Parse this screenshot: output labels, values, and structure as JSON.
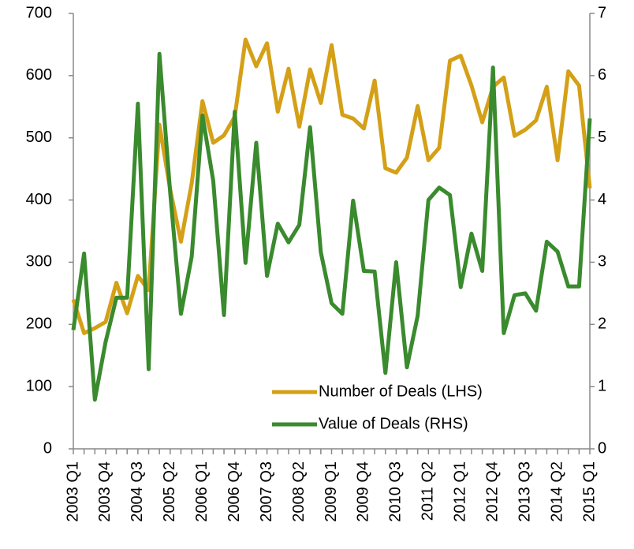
{
  "chart_data": {
    "type": "line",
    "categories": [
      "2003 Q1",
      null,
      null,
      "2003 Q4",
      null,
      null,
      "2004 Q3",
      null,
      null,
      "2005 Q2",
      null,
      null,
      "2006 Q1",
      null,
      null,
      "2006 Q4",
      null,
      null,
      "2007 Q3",
      null,
      null,
      "2008 Q2",
      null,
      null,
      "2009 Q1",
      null,
      null,
      "2009 Q4",
      null,
      null,
      "2010 Q3",
      null,
      null,
      "2011 Q2",
      null,
      null,
      "2012 Q1",
      null,
      null,
      "2012 Q4",
      null,
      null,
      "2013 Q3",
      null,
      null,
      "2014 Q2",
      null,
      null,
      "2015 Q1"
    ],
    "series": [
      {
        "name": "Number of Deals (LHS)",
        "color": "#D4A017",
        "values": [
          240,
          186,
          194,
          204,
          267,
          218,
          278,
          255,
          521,
          417,
          333,
          427,
          559,
          492,
          504,
          534,
          658,
          615,
          652,
          542,
          611,
          518,
          610,
          556,
          649,
          537,
          531,
          515,
          592,
          451,
          444,
          468,
          551,
          464,
          484,
          624,
          632,
          584,
          525,
          582,
          597,
          503,
          513,
          528,
          582,
          464,
          607,
          584,
          419
        ]
      },
      {
        "name": "Value of Deals (RHS)",
        "color": "#3A8A2E",
        "axis": "y2",
        "values": [
          1.91,
          3.14,
          0.79,
          1.72,
          2.43,
          2.43,
          5.55,
          1.28,
          6.35,
          4.12,
          2.17,
          3.09,
          5.36,
          4.31,
          2.15,
          5.42,
          2.99,
          4.92,
          2.78,
          3.62,
          3.32,
          3.6,
          5.17,
          3.16,
          2.34,
          2.17,
          3.99,
          2.86,
          2.85,
          1.22,
          3.0,
          1.31,
          2.14,
          4.0,
          4.2,
          4.08,
          2.6,
          3.46,
          2.86,
          6.13,
          1.86,
          2.47,
          2.5,
          2.22,
          3.33,
          3.17,
          2.61,
          2.61,
          5.31
        ]
      }
    ],
    "ylim": [
      0,
      700
    ],
    "yticks": [
      0,
      100,
      200,
      300,
      400,
      500,
      600,
      700
    ],
    "y2lim": [
      0,
      7
    ],
    "y2ticks": [
      0,
      1,
      2,
      3,
      4,
      5,
      6,
      7
    ],
    "grid": false,
    "legend": "bottom"
  }
}
